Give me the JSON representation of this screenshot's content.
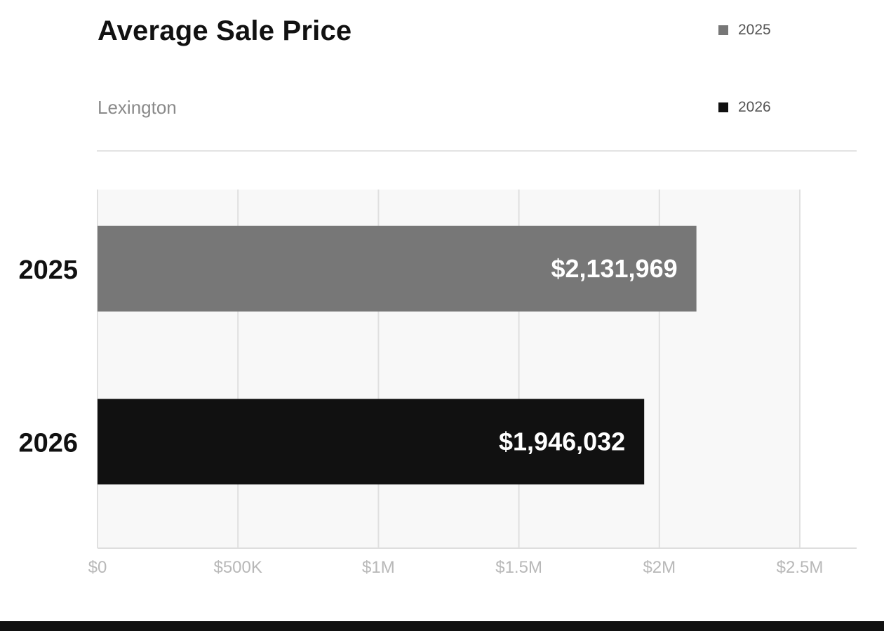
{
  "header": {
    "title": "Average Sale Price",
    "subtitle": "Lexington"
  },
  "legend": [
    {
      "label": "2025",
      "color": "#777777"
    },
    {
      "label": "2026",
      "color": "#111111"
    }
  ],
  "chart_data": {
    "type": "bar",
    "orientation": "horizontal",
    "title": "Average Sale Price",
    "subtitle": "Lexington",
    "categories": [
      "2025",
      "2026"
    ],
    "values": [
      2131969,
      1946032
    ],
    "value_labels": [
      "$2,131,969",
      "$1,946,032"
    ],
    "colors": [
      "#777777",
      "#111111"
    ],
    "xlim": [
      0,
      2500000
    ],
    "xticks": [
      0,
      500000,
      1000000,
      1500000,
      2000000,
      2500000
    ],
    "xtick_labels": [
      "$0",
      "$500K",
      "$1M",
      "$1.5M",
      "$2M",
      "$2.5M"
    ],
    "xlabel": "",
    "ylabel": "",
    "grid": true,
    "legend_position": "top-right"
  }
}
